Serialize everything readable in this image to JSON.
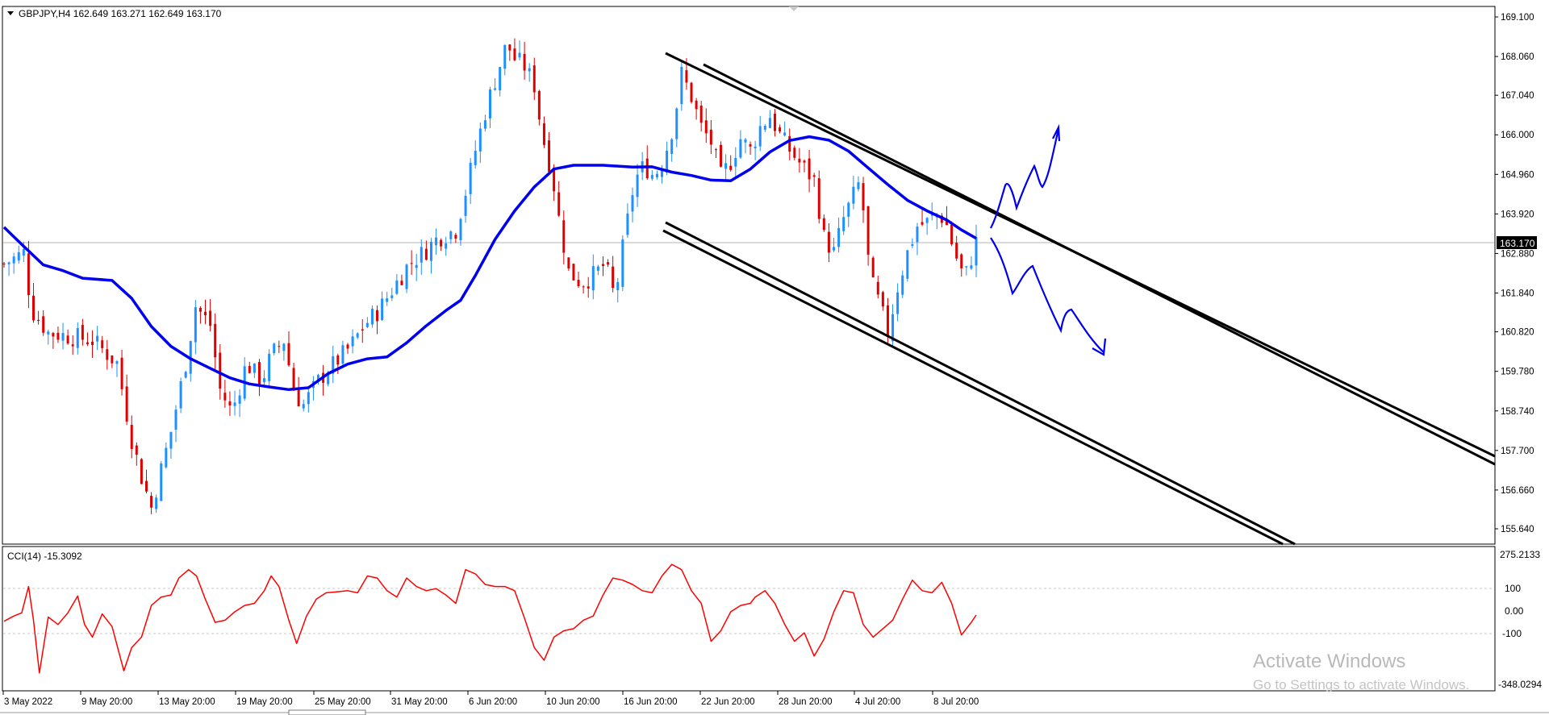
{
  "header": {
    "symbol_line": "GBPJPY,H4  162.649 163.271 162.649 163.170",
    "collapse_icon": "triangle-down-icon"
  },
  "price_axis": {
    "ticks": [
      "169.100",
      "168.060",
      "167.040",
      "166.000",
      "164.960",
      "163.920",
      "162.880",
      "161.840",
      "160.820",
      "159.780",
      "158.740",
      "157.700",
      "156.660",
      "155.640"
    ],
    "current_price": "163.170"
  },
  "time_axis": {
    "labels": [
      "3 May 2022",
      "9 May 20:00",
      "13 May 20:00",
      "19 May 20:00",
      "25 May 20:00",
      "31 May 20:00",
      "6 Jun 20:00",
      "10 Jun 20:00",
      "16 Jun 20:00",
      "22 Jun 20:00",
      "28 Jun 20:00",
      "4 Jul 20:00",
      "8 Jul 20:00"
    ]
  },
  "indicator": {
    "label": "CCI(14) -15.3092",
    "ticks": [
      "275.2133",
      "100",
      "0.00",
      "-100",
      "-348.0294"
    ]
  },
  "watermark": {
    "line1": "Activate Windows",
    "line2": "Go to Settings to activate Windows."
  },
  "colors": {
    "bull": "#1e90ff",
    "bear": "#e00000",
    "ma": "#0000ee",
    "cci": "#ff0000",
    "channel": "#000000",
    "drawing": "#0000ee",
    "price_line": "#b4b4b4",
    "tag_bg": "#000000"
  },
  "chart_data": [
    {
      "type": "candlestick",
      "symbol": "GBPJPY",
      "timeframe": "H4",
      "ylim": [
        155.2,
        169.3
      ],
      "yticks": [
        169.1,
        168.06,
        167.04,
        166.0,
        164.96,
        163.92,
        162.88,
        161.84,
        160.82,
        159.78,
        158.74,
        157.7,
        156.66,
        155.64
      ],
      "last_price": 163.17,
      "close_path": [
        [
          0,
          162.6
        ],
        [
          20,
          162.9
        ],
        [
          28,
          161.4
        ],
        [
          45,
          160.8
        ],
        [
          90,
          160.6
        ],
        [
          115,
          160.0
        ],
        [
          130,
          158.0
        ],
        [
          140,
          157.0
        ],
        [
          150,
          156.2
        ],
        [
          170,
          158.2
        ],
        [
          185,
          160.0
        ],
        [
          195,
          161.5
        ],
        [
          210,
          161.0
        ],
        [
          220,
          159.3
        ],
        [
          232,
          158.7
        ],
        [
          247,
          160.0
        ],
        [
          262,
          159.5
        ],
        [
          272,
          160.2
        ],
        [
          285,
          160.6
        ],
        [
          296,
          159.2
        ],
        [
          305,
          158.9
        ],
        [
          322,
          159.6
        ],
        [
          337,
          160.0
        ],
        [
          352,
          160.4
        ],
        [
          367,
          161.0
        ],
        [
          382,
          161.4
        ],
        [
          397,
          162.0
        ],
        [
          412,
          162.6
        ],
        [
          427,
          162.9
        ],
        [
          442,
          163.3
        ],
        [
          460,
          163.5
        ],
        [
          470,
          164.5
        ],
        [
          480,
          165.6
        ],
        [
          492,
          166.8
        ],
        [
          502,
          167.6
        ],
        [
          512,
          168.4
        ],
        [
          520,
          168.0
        ],
        [
          530,
          167.8
        ],
        [
          540,
          167.3
        ],
        [
          548,
          166.0
        ],
        [
          558,
          165.0
        ],
        [
          565,
          163.8
        ],
        [
          575,
          162.4
        ],
        [
          588,
          162.1
        ],
        [
          600,
          162.3
        ],
        [
          612,
          162.6
        ],
        [
          622,
          161.7
        ],
        [
          630,
          163.0
        ],
        [
          642,
          164.8
        ],
        [
          652,
          165.2
        ],
        [
          662,
          164.9
        ],
        [
          672,
          165.4
        ],
        [
          682,
          166.3
        ],
        [
          690,
          167.6
        ],
        [
          700,
          167.0
        ],
        [
          710,
          166.2
        ],
        [
          720,
          165.8
        ],
        [
          730,
          164.9
        ],
        [
          740,
          165.3
        ],
        [
          750,
          165.9
        ],
        [
          760,
          165.6
        ],
        [
          770,
          166.2
        ],
        [
          780,
          166.5
        ],
        [
          790,
          166.0
        ],
        [
          800,
          165.6
        ],
        [
          812,
          165.2
        ],
        [
          825,
          164.8
        ],
        [
          835,
          163.3
        ],
        [
          845,
          162.9
        ],
        [
          855,
          163.8
        ],
        [
          865,
          164.4
        ],
        [
          872,
          164.8
        ],
        [
          882,
          162.2
        ],
        [
          892,
          161.5
        ],
        [
          900,
          160.8
        ],
        [
          910,
          162.0
        ],
        [
          920,
          162.9
        ],
        [
          930,
          163.6
        ],
        [
          940,
          163.7
        ],
        [
          950,
          163.9
        ],
        [
          958,
          163.8
        ],
        [
          968,
          162.9
        ],
        [
          978,
          162.2
        ],
        [
          990,
          163.17
        ]
      ],
      "moving_average": [
        [
          0,
          163.57
        ],
        [
          20,
          163.07
        ],
        [
          40,
          162.58
        ],
        [
          60,
          162.43
        ],
        [
          80,
          162.23
        ],
        [
          110,
          162.17
        ],
        [
          130,
          161.7
        ],
        [
          150,
          160.96
        ],
        [
          170,
          160.44
        ],
        [
          190,
          160.11
        ],
        [
          210,
          159.86
        ],
        [
          230,
          159.61
        ],
        [
          250,
          159.45
        ],
        [
          270,
          159.37
        ],
        [
          290,
          159.3
        ],
        [
          310,
          159.35
        ],
        [
          330,
          159.72
        ],
        [
          350,
          159.97
        ],
        [
          370,
          160.11
        ],
        [
          390,
          160.16
        ],
        [
          410,
          160.53
        ],
        [
          430,
          160.98
        ],
        [
          450,
          161.38
        ],
        [
          465,
          161.65
        ],
        [
          480,
          162.3
        ],
        [
          500,
          163.25
        ],
        [
          520,
          164.0
        ],
        [
          540,
          164.63
        ],
        [
          560,
          165.1
        ],
        [
          580,
          165.2
        ],
        [
          610,
          165.2
        ],
        [
          640,
          165.15
        ],
        [
          660,
          165.16
        ],
        [
          680,
          165.02
        ],
        [
          700,
          164.93
        ],
        [
          720,
          164.81
        ],
        [
          740,
          164.79
        ],
        [
          760,
          165.1
        ],
        [
          780,
          165.55
        ],
        [
          800,
          165.85
        ],
        [
          820,
          165.95
        ],
        [
          840,
          165.86
        ],
        [
          860,
          165.57
        ],
        [
          880,
          165.13
        ],
        [
          900,
          164.69
        ],
        [
          920,
          164.28
        ],
        [
          940,
          164.0
        ],
        [
          960,
          163.76
        ],
        [
          975,
          163.5
        ],
        [
          990,
          163.28
        ]
      ]
    },
    {
      "type": "line",
      "name": "CCI(14)",
      "ylim": [
        -348.0294,
        275.2133
      ],
      "levels": [
        100,
        0,
        -100
      ],
      "points": [
        [
          0,
          -45
        ],
        [
          10,
          -20
        ],
        [
          18,
          -5
        ],
        [
          25,
          120
        ],
        [
          30,
          -40
        ],
        [
          36,
          -290
        ],
        [
          45,
          -25
        ],
        [
          55,
          -60
        ],
        [
          65,
          -5
        ],
        [
          75,
          75
        ],
        [
          82,
          -60
        ],
        [
          90,
          -120
        ],
        [
          100,
          -10
        ],
        [
          110,
          -70
        ],
        [
          122,
          -280
        ],
        [
          130,
          -170
        ],
        [
          140,
          -120
        ],
        [
          150,
          30
        ],
        [
          160,
          70
        ],
        [
          170,
          80
        ],
        [
          178,
          160
        ],
        [
          188,
          200
        ],
        [
          196,
          170
        ],
        [
          205,
          60
        ],
        [
          215,
          -50
        ],
        [
          225,
          -40
        ],
        [
          235,
          0
        ],
        [
          245,
          30
        ],
        [
          255,
          40
        ],
        [
          265,
          100
        ],
        [
          272,
          170
        ],
        [
          280,
          120
        ],
        [
          290,
          -40
        ],
        [
          298,
          -150
        ],
        [
          308,
          -20
        ],
        [
          318,
          60
        ],
        [
          328,
          90
        ],
        [
          340,
          95
        ],
        [
          350,
          100
        ],
        [
          360,
          90
        ],
        [
          370,
          170
        ],
        [
          380,
          160
        ],
        [
          390,
          100
        ],
        [
          400,
          70
        ],
        [
          410,
          160
        ],
        [
          420,
          120
        ],
        [
          430,
          100
        ],
        [
          440,
          110
        ],
        [
          450,
          80
        ],
        [
          460,
          40
        ],
        [
          470,
          200
        ],
        [
          480,
          180
        ],
        [
          490,
          130
        ],
        [
          500,
          120
        ],
        [
          510,
          120
        ],
        [
          520,
          100
        ],
        [
          530,
          -30
        ],
        [
          540,
          -170
        ],
        [
          550,
          -230
        ],
        [
          560,
          -120
        ],
        [
          570,
          -90
        ],
        [
          580,
          -80
        ],
        [
          590,
          -40
        ],
        [
          600,
          -20
        ],
        [
          610,
          80
        ],
        [
          620,
          160
        ],
        [
          630,
          150
        ],
        [
          640,
          130
        ],
        [
          650,
          100
        ],
        [
          660,
          90
        ],
        [
          670,
          170
        ],
        [
          680,
          225
        ],
        [
          690,
          200
        ],
        [
          700,
          100
        ],
        [
          710,
          40
        ],
        [
          720,
          -140
        ],
        [
          730,
          -90
        ],
        [
          740,
          0
        ],
        [
          750,
          30
        ],
        [
          760,
          40
        ],
        [
          765,
          70
        ],
        [
          775,
          100
        ],
        [
          785,
          40
        ],
        [
          795,
          -60
        ],
        [
          805,
          -140
        ],
        [
          815,
          -100
        ],
        [
          825,
          -210
        ],
        [
          835,
          -130
        ],
        [
          845,
          0
        ],
        [
          855,
          100
        ],
        [
          865,
          90
        ],
        [
          875,
          -60
        ],
        [
          885,
          -120
        ],
        [
          895,
          -80
        ],
        [
          905,
          -40
        ],
        [
          915,
          60
        ],
        [
          925,
          150
        ],
        [
          935,
          100
        ],
        [
          945,
          90
        ],
        [
          955,
          140
        ],
        [
          965,
          40
        ],
        [
          975,
          -110
        ],
        [
          985,
          -50
        ],
        [
          990,
          -15.3
        ]
      ]
    }
  ]
}
